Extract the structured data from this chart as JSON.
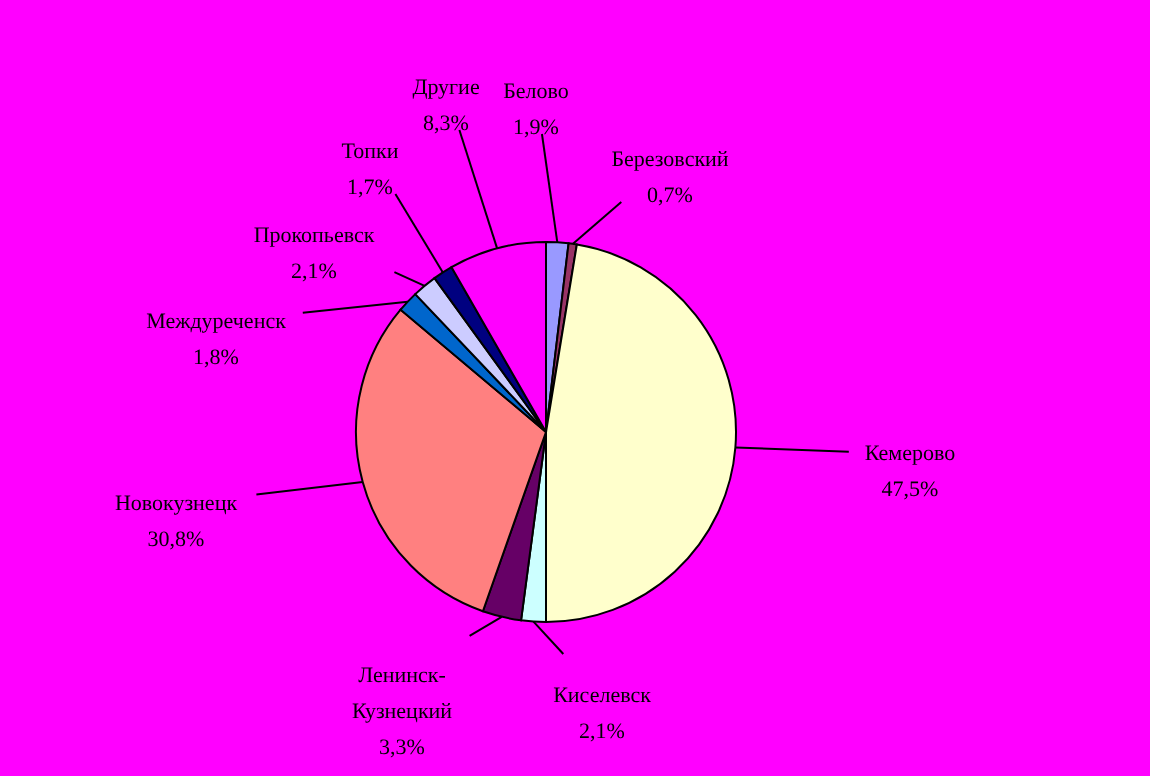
{
  "chart_data": {
    "type": "pie",
    "categories": [
      "Белово",
      "Березовский",
      "Кемерово",
      "Киселевск",
      "Ленинск-Кузнецкий",
      "Новокузнецк",
      "Междуреченск",
      "Прокопьевск",
      "Топки",
      "Другие"
    ],
    "values": [
      1.9,
      0.7,
      47.5,
      2.1,
      3.3,
      30.8,
      1.8,
      2.1,
      1.7,
      8.3
    ],
    "value_labels": [
      "1,9%",
      "0,7%",
      "47,5%",
      "2,1%",
      "3,3%",
      "30,8%",
      "1,8%",
      "2,1%",
      "1,7%",
      "8,3%"
    ],
    "colors": [
      "#9999ff",
      "#993366",
      "#ffffcc",
      "#ccffff",
      "#660066",
      "#ff8080",
      "#0066cc",
      "#ccccff",
      "#000080",
      "#ff00ff"
    ]
  }
}
